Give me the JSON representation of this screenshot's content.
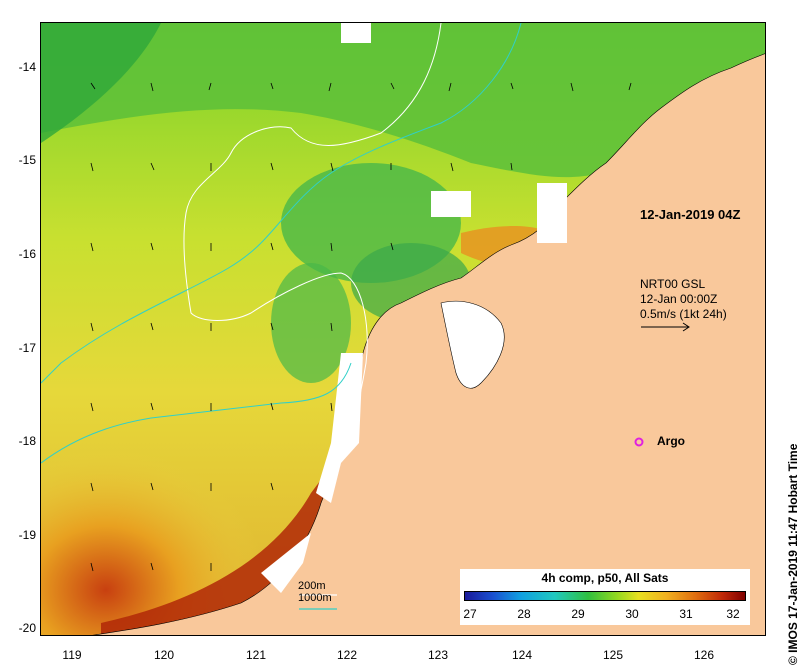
{
  "map": {
    "lon_ticks": [
      "119",
      "120",
      "121",
      "122",
      "123",
      "124",
      "125",
      "126"
    ],
    "lat_ticks": [
      "-14",
      "-15",
      "-16",
      "-17",
      "-18",
      "-19",
      "-20"
    ],
    "date_label": "12-Jan-2019 04Z",
    "current_legend": {
      "line1": "NRT00 GSL",
      "line2": "12-Jan 00:00Z",
      "line3": "0.5m/s (1kt 24h)"
    },
    "argo_label": "Argo",
    "credit": "© IMOS 17-Jan-2019 11:47 Hobart Time",
    "depth_legend": {
      "shallow": "200m",
      "deep": "1000m"
    },
    "colorbar": {
      "title": "4h comp, p50, All Sats",
      "ticks": [
        "27",
        "28",
        "29",
        "30",
        "31",
        "32"
      ]
    },
    "colors": {
      "land": "#f9c89b",
      "isobath_200": "#ffffff",
      "isobath_1000": "#30d0c8",
      "argo": "#e020e0"
    }
  }
}
